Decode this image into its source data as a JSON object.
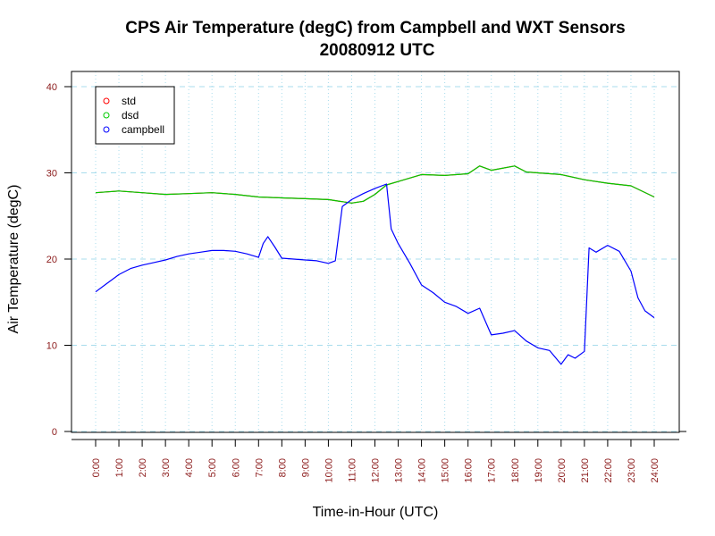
{
  "chart_data": {
    "type": "line",
    "title": "CPS Air Temperature (degC) from Campbell and WXT Sensors",
    "subtitle": "20080912  UTC",
    "xlabel": "Time-in-Hour (UTC)",
    "ylabel": "Air Temperature (degC)",
    "xlim": [
      0,
      24
    ],
    "ylim": [
      0,
      40
    ],
    "x_ticks": [
      "0:00",
      "1:00",
      "2:00",
      "3:00",
      "4:00",
      "5:00",
      "6:00",
      "7:00",
      "8:00",
      "9:00",
      "10:00",
      "11:00",
      "12:00",
      "13:00",
      "14:00",
      "15:00",
      "16:00",
      "17:00",
      "18:00",
      "19:00",
      "20:00",
      "21:00",
      "22:00",
      "23:00",
      "24:00"
    ],
    "y_ticks": [
      0,
      10,
      20,
      30,
      40
    ],
    "grid": true,
    "legend_position": "top-left",
    "series": [
      {
        "name": "std",
        "color": "#ff0000",
        "x": [
          0,
          1,
          2,
          3,
          4,
          5,
          6,
          7,
          8,
          9,
          10,
          11,
          11.5,
          12,
          12.5,
          13,
          14,
          15,
          16,
          16.5,
          17,
          18,
          18.5,
          19,
          20,
          21,
          22,
          23,
          24
        ],
        "y": [
          27.7,
          27.9,
          27.7,
          27.5,
          27.6,
          27.7,
          27.5,
          27.2,
          27.1,
          27.0,
          26.9,
          26.5,
          26.7,
          27.5,
          28.6,
          29.0,
          29.8,
          29.7,
          29.9,
          30.8,
          30.3,
          30.8,
          30.1,
          30.0,
          29.8,
          29.2,
          28.8,
          28.5,
          27.2
        ]
      },
      {
        "name": "dsd",
        "color": "#00cc00",
        "x": [
          0,
          1,
          2,
          3,
          4,
          5,
          6,
          7,
          8,
          9,
          10,
          11,
          11.5,
          12,
          12.5,
          13,
          14,
          15,
          16,
          16.5,
          17,
          18,
          18.5,
          19,
          20,
          21,
          22,
          23,
          24
        ],
        "y": [
          27.7,
          27.9,
          27.7,
          27.5,
          27.6,
          27.7,
          27.5,
          27.2,
          27.1,
          27.0,
          26.9,
          26.5,
          26.7,
          27.5,
          28.6,
          29.0,
          29.8,
          29.7,
          29.9,
          30.8,
          30.3,
          30.8,
          30.1,
          30.0,
          29.8,
          29.2,
          28.8,
          28.5,
          27.2
        ]
      },
      {
        "name": "campbell",
        "color": "#0000ff",
        "x": [
          0,
          0.5,
          1,
          1.5,
          2,
          2.5,
          3,
          3.5,
          4,
          4.5,
          5,
          5.5,
          6,
          6.5,
          7,
          7.2,
          7.4,
          7.7,
          8,
          8.5,
          9,
          9.5,
          10,
          10.3,
          10.6,
          11,
          11.5,
          12,
          12.5,
          12.7,
          13,
          13.5,
          14,
          14.5,
          15,
          15.5,
          16,
          16.5,
          17,
          17.5,
          18,
          18.5,
          19,
          19.5,
          20,
          20.3,
          20.6,
          21,
          21.2,
          21.5,
          22,
          22.5,
          23,
          23.3,
          23.6,
          24
        ],
        "y": [
          16.2,
          17.2,
          18.2,
          18.9,
          19.3,
          19.6,
          19.9,
          20.3,
          20.6,
          20.8,
          21.0,
          21.0,
          20.9,
          20.6,
          20.2,
          21.8,
          22.6,
          21.4,
          20.1,
          20.0,
          19.9,
          19.8,
          19.5,
          19.8,
          26.1,
          26.9,
          27.6,
          28.2,
          28.7,
          23.5,
          21.8,
          19.5,
          17.0,
          16.1,
          15.0,
          14.5,
          13.7,
          14.3,
          11.2,
          11.4,
          11.7,
          10.5,
          9.7,
          9.4,
          7.8,
          8.9,
          8.5,
          9.3,
          21.3,
          20.8,
          21.6,
          20.9,
          18.6,
          15.5,
          14.0,
          13.2
        ]
      }
    ]
  }
}
